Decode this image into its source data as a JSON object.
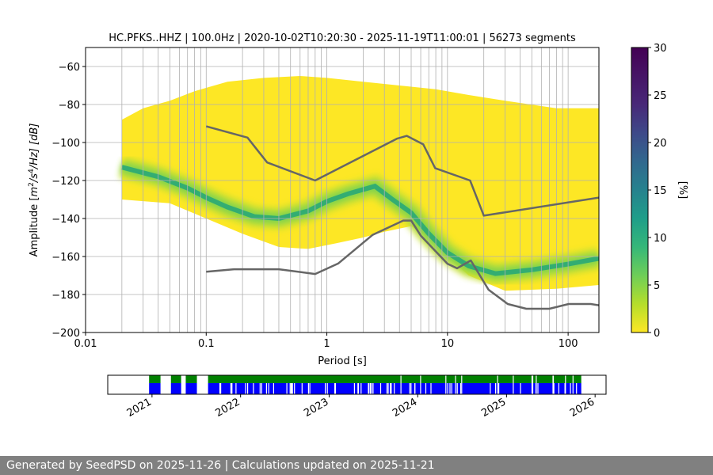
{
  "chart_data": {
    "type": "heatmap",
    "title": "HC.PFKS..HHZ | 100.0Hz | 2020-10-02T10:20:30 - 2025-11-19T11:00:01 | 56273 segments",
    "xlabel": "Period [s]",
    "ylabel_parts": {
      "pre": "Amplitude [",
      "m": "m",
      "e2": "2",
      "s": "/s",
      "e4": "4",
      "hz": "/Hz] [dB]"
    },
    "x_scale": "log",
    "xlim": [
      0.01,
      180
    ],
    "ylim": [
      -200,
      -50
    ],
    "x_ticks": [
      {
        "value": 0.01,
        "label": "0.01"
      },
      {
        "value": 0.1,
        "label": "0.1"
      },
      {
        "value": 1,
        "label": "1"
      },
      {
        "value": 10,
        "label": "10"
      },
      {
        "value": 100,
        "label": "100"
      }
    ],
    "y_ticks": [
      {
        "value": -60,
        "label": "−60"
      },
      {
        "value": -80,
        "label": "−80"
      },
      {
        "value": -100,
        "label": "−100"
      },
      {
        "value": -120,
        "label": "−120"
      },
      {
        "value": -140,
        "label": "−140"
      },
      {
        "value": -160,
        "label": "−160"
      },
      {
        "value": -180,
        "label": "−180"
      },
      {
        "value": -200,
        "label": "−200"
      }
    ],
    "grid": true,
    "colormap": "viridis",
    "colorbar": {
      "label": "[%]",
      "range": [
        0,
        30
      ],
      "ticks": [
        {
          "value": 0,
          "label": "0"
        },
        {
          "value": 5,
          "label": "5"
        },
        {
          "value": 10,
          "label": "10"
        },
        {
          "value": 15,
          "label": "15"
        },
        {
          "value": 20,
          "label": "20"
        },
        {
          "value": 25,
          "label": "25"
        },
        {
          "value": 30,
          "label": "30"
        }
      ]
    },
    "psd_extent": {
      "upper": [
        [
          0.02,
          -88
        ],
        [
          0.03,
          -82
        ],
        [
          0.05,
          -78
        ],
        [
          0.08,
          -73
        ],
        [
          0.15,
          -68
        ],
        [
          0.3,
          -66
        ],
        [
          0.6,
          -65
        ],
        [
          1,
          -66
        ],
        [
          2,
          -68
        ],
        [
          4,
          -70
        ],
        [
          8,
          -72
        ],
        [
          15,
          -75
        ],
        [
          30,
          -78
        ],
        [
          80,
          -82
        ],
        [
          180,
          -82
        ]
      ],
      "lower": [
        [
          0.02,
          -130
        ],
        [
          0.05,
          -132
        ],
        [
          0.1,
          -140
        ],
        [
          0.2,
          -148
        ],
        [
          0.4,
          -155
        ],
        [
          0.7,
          -156
        ],
        [
          1.2,
          -153
        ],
        [
          2,
          -150
        ],
        [
          3,
          -147
        ],
        [
          5,
          -144
        ],
        [
          7,
          -150
        ],
        [
          10,
          -160
        ],
        [
          15,
          -170
        ],
        [
          30,
          -178
        ],
        [
          80,
          -177
        ],
        [
          180,
          -175
        ]
      ]
    },
    "mode_curve": [
      [
        0.02,
        -113
      ],
      [
        0.04,
        -118
      ],
      [
        0.07,
        -124
      ],
      [
        0.1,
        -129
      ],
      [
        0.15,
        -134
      ],
      [
        0.25,
        -139
      ],
      [
        0.4,
        -140
      ],
      [
        0.7,
        -136
      ],
      [
        1,
        -131
      ],
      [
        1.5,
        -127
      ],
      [
        2.5,
        -123
      ],
      [
        3.5,
        -130
      ],
      [
        5,
        -137
      ],
      [
        7,
        -148
      ],
      [
        10,
        -158
      ],
      [
        15,
        -165
      ],
      [
        25,
        -169
      ],
      [
        50,
        -167
      ],
      [
        100,
        -164
      ],
      [
        180,
        -161
      ]
    ],
    "noise_models": [
      {
        "name": "NHNM",
        "points": [
          [
            0.1,
            -91.5
          ],
          [
            0.22,
            -97.4
          ],
          [
            0.32,
            -110.5
          ],
          [
            0.8,
            -120
          ],
          [
            3.8,
            -98
          ],
          [
            4.6,
            -96.5
          ],
          [
            6.3,
            -101
          ],
          [
            7.9,
            -113.5
          ],
          [
            15.4,
            -120
          ],
          [
            20,
            -138.5
          ],
          [
            180,
            -129
          ]
        ]
      },
      {
        "name": "NLNM",
        "points": [
          [
            0.1,
            -168
          ],
          [
            0.17,
            -166.7
          ],
          [
            0.4,
            -166.7
          ],
          [
            0.8,
            -169.2
          ],
          [
            1.24,
            -163.7
          ],
          [
            2.4,
            -148.6
          ],
          [
            4.3,
            -141.1
          ],
          [
            5,
            -141.1
          ],
          [
            6,
            -149
          ],
          [
            10,
            -163.8
          ],
          [
            12,
            -166.2
          ],
          [
            15.6,
            -162.1
          ],
          [
            21.9,
            -177.5
          ],
          [
            31.6,
            -185
          ],
          [
            45,
            -187.5
          ],
          [
            70,
            -187.5
          ],
          [
            101,
            -185
          ],
          [
            154,
            -185
          ],
          [
            180,
            -185.7
          ]
        ]
      }
    ],
    "timeline": {
      "range": [
        "2020-10-02",
        "2025-11-19"
      ],
      "x_ticks": [
        {
          "value": "2021-01-01",
          "label": "2021"
        },
        {
          "value": "2022-01-01",
          "label": "2022"
        },
        {
          "value": "2023-01-01",
          "label": "2023"
        },
        {
          "value": "2024-01-01",
          "label": "2024"
        },
        {
          "value": "2025-01-01",
          "label": "2025"
        },
        {
          "value": "2026-01-01",
          "label": "2026"
        }
      ],
      "colors": {
        "data": "#0000ff",
        "processed": "#008000"
      },
      "gaps": [
        [
          "2020-10-02",
          "2020-12-20"
        ],
        [
          "2021-02-05",
          "2021-03-20"
        ],
        [
          "2021-05-01",
          "2021-05-20"
        ],
        [
          "2021-07-05",
          "2021-08-20"
        ],
        [
          "2025-11-05",
          "2025-11-19"
        ]
      ]
    }
  },
  "footer": {
    "text": "Generated by SeedPSD on 2025-11-26 | Calculations updated on 2025-11-21"
  }
}
